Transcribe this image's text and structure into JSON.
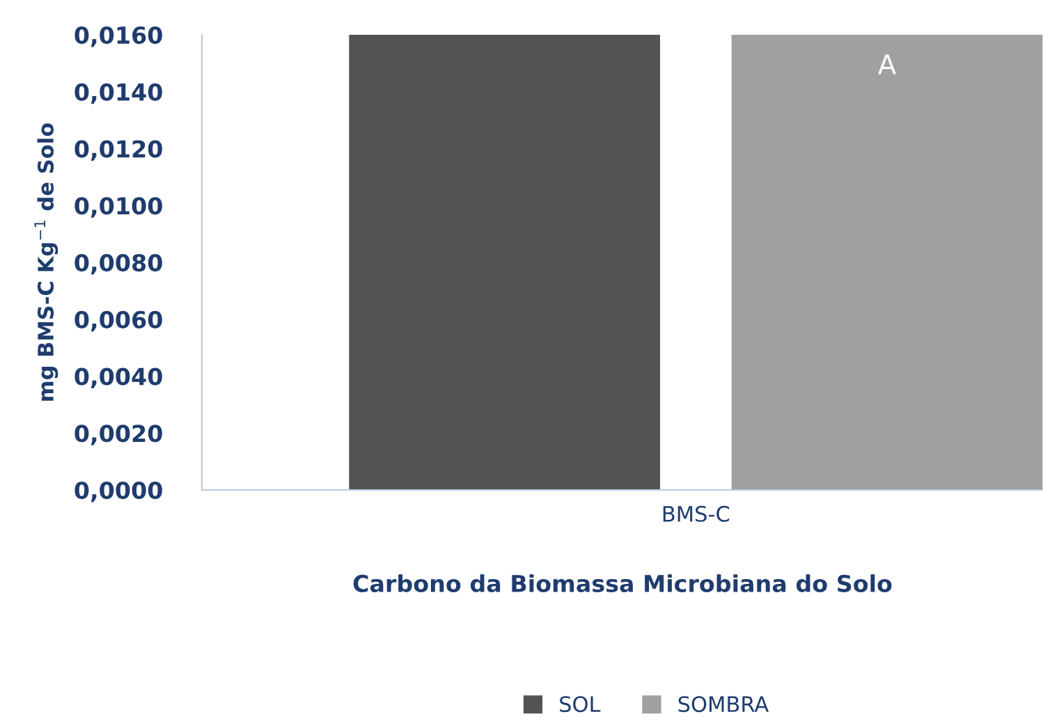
{
  "chart_data": {
    "type": "bar",
    "categories": [
      "BMS-C"
    ],
    "series": [
      {
        "name": "SOL",
        "color": "#545454",
        "values": [
          0.016
        ]
      },
      {
        "name": "SOMBRA",
        "color": "#a0a0a0",
        "values": [
          0.016
        ]
      }
    ],
    "xlabel": "Carbono da Biomassa Microbiana do Solo",
    "ylabel": "mg BMS-C Kg$^{−1}$ de Solo",
    "ylim": [
      0,
      0.016
    ],
    "yticks": [
      {
        "value": 0,
        "label": "0,0000"
      },
      {
        "value": 0.002,
        "label": "0,0020"
      },
      {
        "value": 0.004,
        "label": "0,0040"
      },
      {
        "value": 0.006,
        "label": "0,0060"
      },
      {
        "value": 0.008,
        "label": "0,0080"
      },
      {
        "value": 0.01,
        "label": "0,0100"
      },
      {
        "value": 0.012,
        "label": "0,0120"
      },
      {
        "value": 0.014,
        "label": "0,0140"
      },
      {
        "value": 0.016,
        "label": "0,0160"
      }
    ],
    "annotations": [
      "A"
    ],
    "legend": "bottom",
    "grid": false
  }
}
